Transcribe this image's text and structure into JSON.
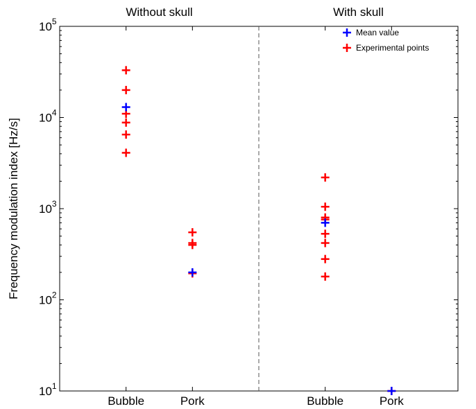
{
  "chart_data": {
    "type": "scatter",
    "ylabel": "Frequency modulation index [Hz/s]",
    "yscale": "log",
    "ylim": [
      10,
      100000
    ],
    "yticks": [
      {
        "value": 10,
        "base": "10",
        "exp": "1"
      },
      {
        "value": 100,
        "base": "10",
        "exp": "2"
      },
      {
        "value": 1000,
        "base": "10",
        "exp": "3"
      },
      {
        "value": 10000,
        "base": "10",
        "exp": "4"
      },
      {
        "value": 100000,
        "base": "10",
        "exp": "5"
      }
    ],
    "xlim": [
      0,
      6
    ],
    "divider_x": 3,
    "categories": [
      {
        "label": "Bubble",
        "x": 1
      },
      {
        "label": "Pork",
        "x": 2
      },
      {
        "label": "Bubble",
        "x": 4
      },
      {
        "label": "Pork",
        "x": 5
      }
    ],
    "panels": [
      {
        "title": "Without skull",
        "x": 1.5
      },
      {
        "title": "With skull",
        "x": 4.5
      }
    ],
    "legend": {
      "position": "top-right"
    },
    "series": [
      {
        "name": "Mean value",
        "color": "#0000ff",
        "points": [
          {
            "x": 1,
            "y": 13000
          },
          {
            "x": 2,
            "y": 200
          },
          {
            "x": 4,
            "y": 700
          },
          {
            "x": 5,
            "y": 10
          }
        ]
      },
      {
        "name": "Experimental points",
        "color": "#ff0000",
        "points": [
          {
            "x": 1,
            "y": 33000
          },
          {
            "x": 1,
            "y": 20000
          },
          {
            "x": 1,
            "y": 11000
          },
          {
            "x": 1,
            "y": 8800
          },
          {
            "x": 1,
            "y": 6500
          },
          {
            "x": 1,
            "y": 4100
          },
          {
            "x": 2,
            "y": 550
          },
          {
            "x": 2,
            "y": 420
          },
          {
            "x": 2,
            "y": 400
          },
          {
            "x": 2,
            "y": 195
          },
          {
            "x": 4,
            "y": 2200
          },
          {
            "x": 4,
            "y": 1050
          },
          {
            "x": 4,
            "y": 800
          },
          {
            "x": 4,
            "y": 760
          },
          {
            "x": 4,
            "y": 530
          },
          {
            "x": 4,
            "y": 420
          },
          {
            "x": 4,
            "y": 280
          },
          {
            "x": 4,
            "y": 180
          },
          {
            "x": 5,
            "y": 10
          }
        ]
      }
    ]
  }
}
